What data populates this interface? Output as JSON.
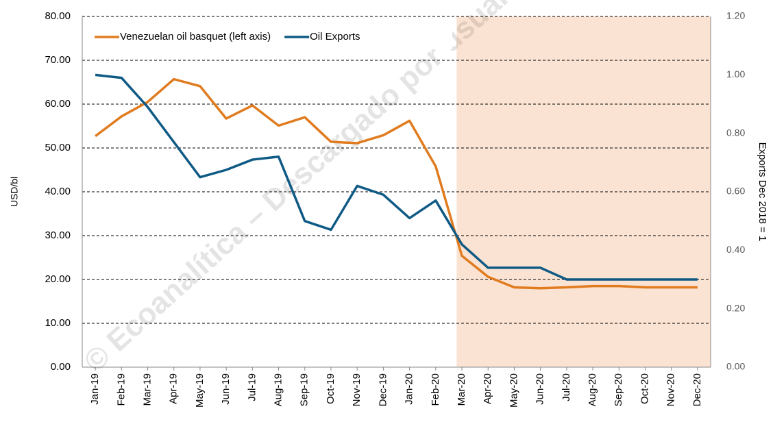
{
  "chart_data": {
    "type": "line",
    "categories": [
      "Jan-19",
      "Feb-19",
      "Mar-19",
      "Apr-19",
      "May-19",
      "Jun-19",
      "Jul-19",
      "Aug-19",
      "Sep-19",
      "Oct-19",
      "Nov-19",
      "Dec-19",
      "Jan-20",
      "Feb-20",
      "Mar-20",
      "Apr-20",
      "May-20",
      "Jun-20",
      "Jul-20",
      "Aug-20",
      "Sep-20",
      "Oct-20",
      "Nov-20",
      "Dec-20"
    ],
    "series": [
      {
        "name": "Venezuelan oil basquet (left axis)",
        "color": "#e07b1f",
        "axis": "y",
        "values": [
          52.7,
          57.2,
          60.5,
          65.7,
          64.1,
          56.7,
          59.7,
          55.1,
          57.0,
          51.4,
          51.1,
          52.9,
          56.2,
          45.8,
          25.4,
          20.6,
          18.2,
          18.0,
          18.2,
          18.5,
          18.5,
          18.2,
          18.2,
          18.2
        ]
      },
      {
        "name": "Oil Exports",
        "color": "#0f5a85",
        "axis": "y2",
        "values": [
          1.0,
          0.99,
          0.89,
          0.77,
          0.65,
          0.675,
          0.71,
          0.72,
          0.5,
          0.47,
          0.62,
          0.59,
          0.51,
          0.57,
          0.42,
          0.34,
          0.34,
          0.34,
          0.3,
          0.3,
          0.3,
          0.3,
          0.3,
          0.3
        ]
      }
    ],
    "ylabel": "USD/bl",
    "y2label": "Exports  Dec 2018 = 1",
    "ylim": [
      0,
      80
    ],
    "yticks": [
      {
        "value": 0,
        "label": "0.00"
      },
      {
        "value": 10,
        "label": "10.00"
      },
      {
        "value": 20,
        "label": "20.00"
      },
      {
        "value": 30,
        "label": "30.00"
      },
      {
        "value": 40,
        "label": "40.00"
      },
      {
        "value": 50,
        "label": "50.00"
      },
      {
        "value": 60,
        "label": "60.00"
      },
      {
        "value": 70,
        "label": "70.00"
      },
      {
        "value": 80,
        "label": "80.00"
      }
    ],
    "y2lim": [
      0,
      1.2
    ],
    "y2ticks": [
      {
        "value": 0,
        "label": "0.00"
      },
      {
        "value": 0.2,
        "label": "0.20"
      },
      {
        "value": 0.4,
        "label": "0.40"
      },
      {
        "value": 0.6,
        "label": "0.60"
      },
      {
        "value": 0.8,
        "label": "0.80"
      },
      {
        "value": 1.0,
        "label": "1.00"
      },
      {
        "value": 1.2,
        "label": "1.20"
      }
    ],
    "grid": true,
    "legend": "top-left",
    "highlight": {
      "from": "Mar-20",
      "to": "Dec-20",
      "color": "#fbe3d3"
    },
    "watermark": "© Ecoanalítica – Descargado por usuario"
  }
}
